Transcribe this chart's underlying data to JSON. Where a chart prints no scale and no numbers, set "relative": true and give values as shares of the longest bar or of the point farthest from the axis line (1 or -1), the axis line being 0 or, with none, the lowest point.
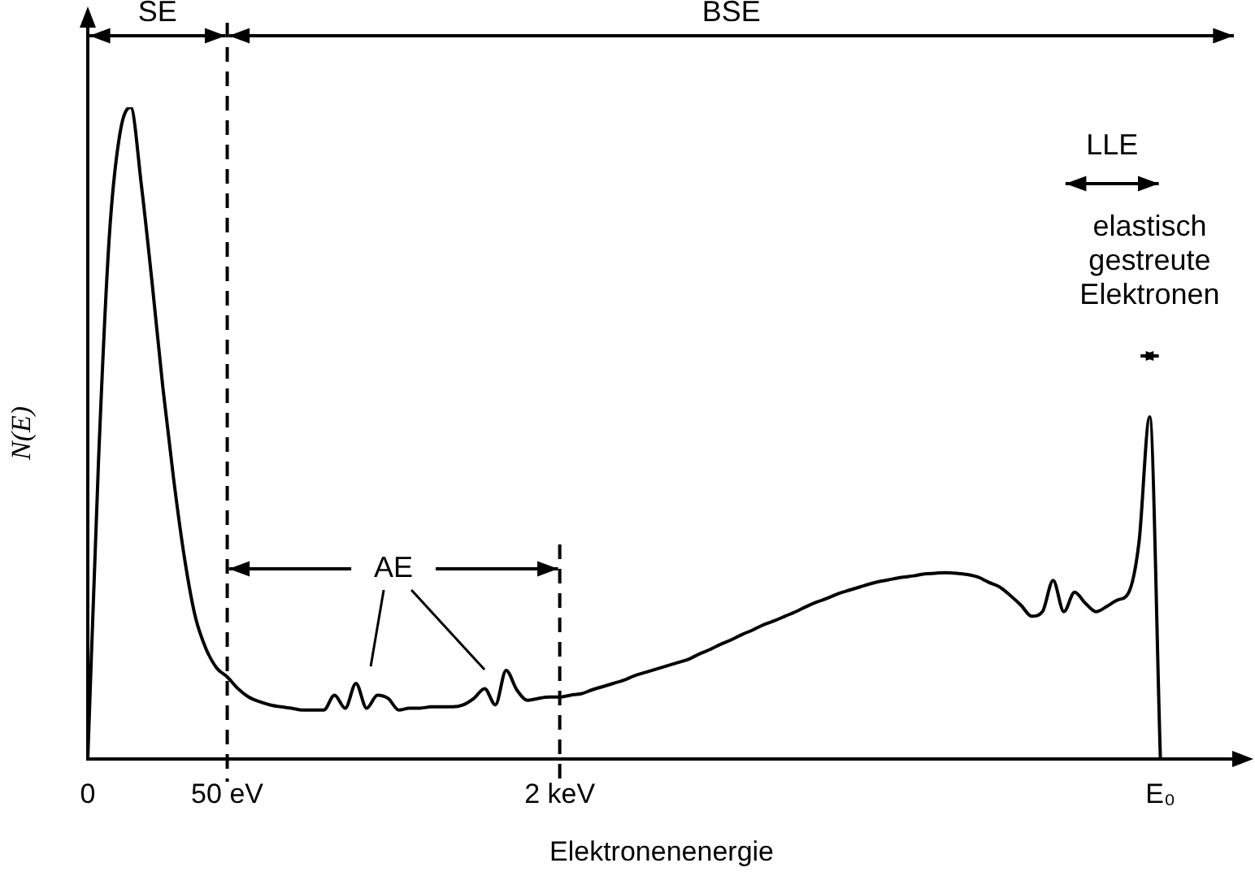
{
  "chart_data": {
    "type": "line",
    "relative": true,
    "xlabel": "Elektronenenergie",
    "ylabel": "N(E)",
    "marker": "none",
    "categories": [
      "0",
      null,
      null,
      null,
      null,
      null,
      null,
      null,
      null,
      null,
      null,
      null,
      null,
      "50 eV",
      null,
      null,
      null,
      null,
      null,
      null,
      null,
      null,
      null,
      null,
      null,
      null,
      null,
      null,
      null,
      null,
      null,
      null,
      null,
      null,
      null,
      null,
      null,
      null,
      null,
      null,
      null,
      null,
      null,
      null,
      "2 keV",
      null,
      null,
      null,
      null,
      null,
      null,
      null,
      null,
      null,
      null,
      null,
      null,
      null,
      null,
      null,
      null,
      null,
      null,
      null,
      null,
      null,
      null,
      null,
      null,
      null,
      null,
      null,
      null,
      null,
      null,
      null,
      null,
      null,
      null,
      null,
      null,
      null,
      null,
      null,
      null,
      null,
      null,
      null,
      null,
      null,
      null,
      null,
      null,
      null,
      null,
      null,
      null,
      null,
      null,
      null,
      "E₀",
      null,
      null,
      null,
      null,
      null,
      null,
      null
    ],
    "series": [
      {
        "color": "#000000",
        "values": [
          0,
          0.457,
          0.8,
          0.96,
          1.0,
          0.88,
          0.73,
          0.57,
          0.43,
          0.31,
          0.22,
          0.17,
          0.14,
          0.126,
          0.108,
          0.095,
          0.088,
          0.083,
          0.08,
          0.078,
          0.075,
          0.075,
          0.075,
          0.098,
          0.078,
          0.116,
          0.078,
          0.098,
          0.093,
          0.075,
          0.078,
          0.078,
          0.08,
          0.08,
          0.08,
          0.083,
          0.093,
          0.108,
          0.083,
          0.136,
          0.106,
          0.09,
          0.093,
          0.095,
          0.095,
          0.098,
          0.1,
          0.106,
          0.111,
          0.116,
          0.121,
          0.128,
          0.133,
          0.138,
          0.143,
          0.148,
          0.153,
          0.161,
          0.168,
          0.176,
          0.183,
          0.191,
          0.198,
          0.206,
          0.212,
          0.219,
          0.226,
          0.234,
          0.241,
          0.247,
          0.254,
          0.259,
          0.264,
          0.269,
          0.273,
          0.276,
          0.279,
          0.281,
          0.284,
          0.285,
          0.286,
          0.285,
          0.283,
          0.279,
          0.271,
          0.264,
          0.251,
          0.236,
          0.219,
          0.226,
          0.274,
          0.226,
          0.256,
          0.239,
          0.226,
          0.234,
          0.244,
          0.254,
          0.332,
          0.525,
          0,
          null,
          null,
          null,
          null,
          null,
          null,
          null
        ]
      }
    ],
    "ref_lines": [
      {
        "axis": "x",
        "value": "50 eV",
        "line_style": "dashed"
      },
      {
        "axis": "x",
        "value": "2 keV",
        "line_style": "dashed"
      }
    ],
    "annotations": [
      "SE",
      "BSE",
      "AE",
      "LLE",
      "elastisch gestreute Elektronen"
    ]
  }
}
